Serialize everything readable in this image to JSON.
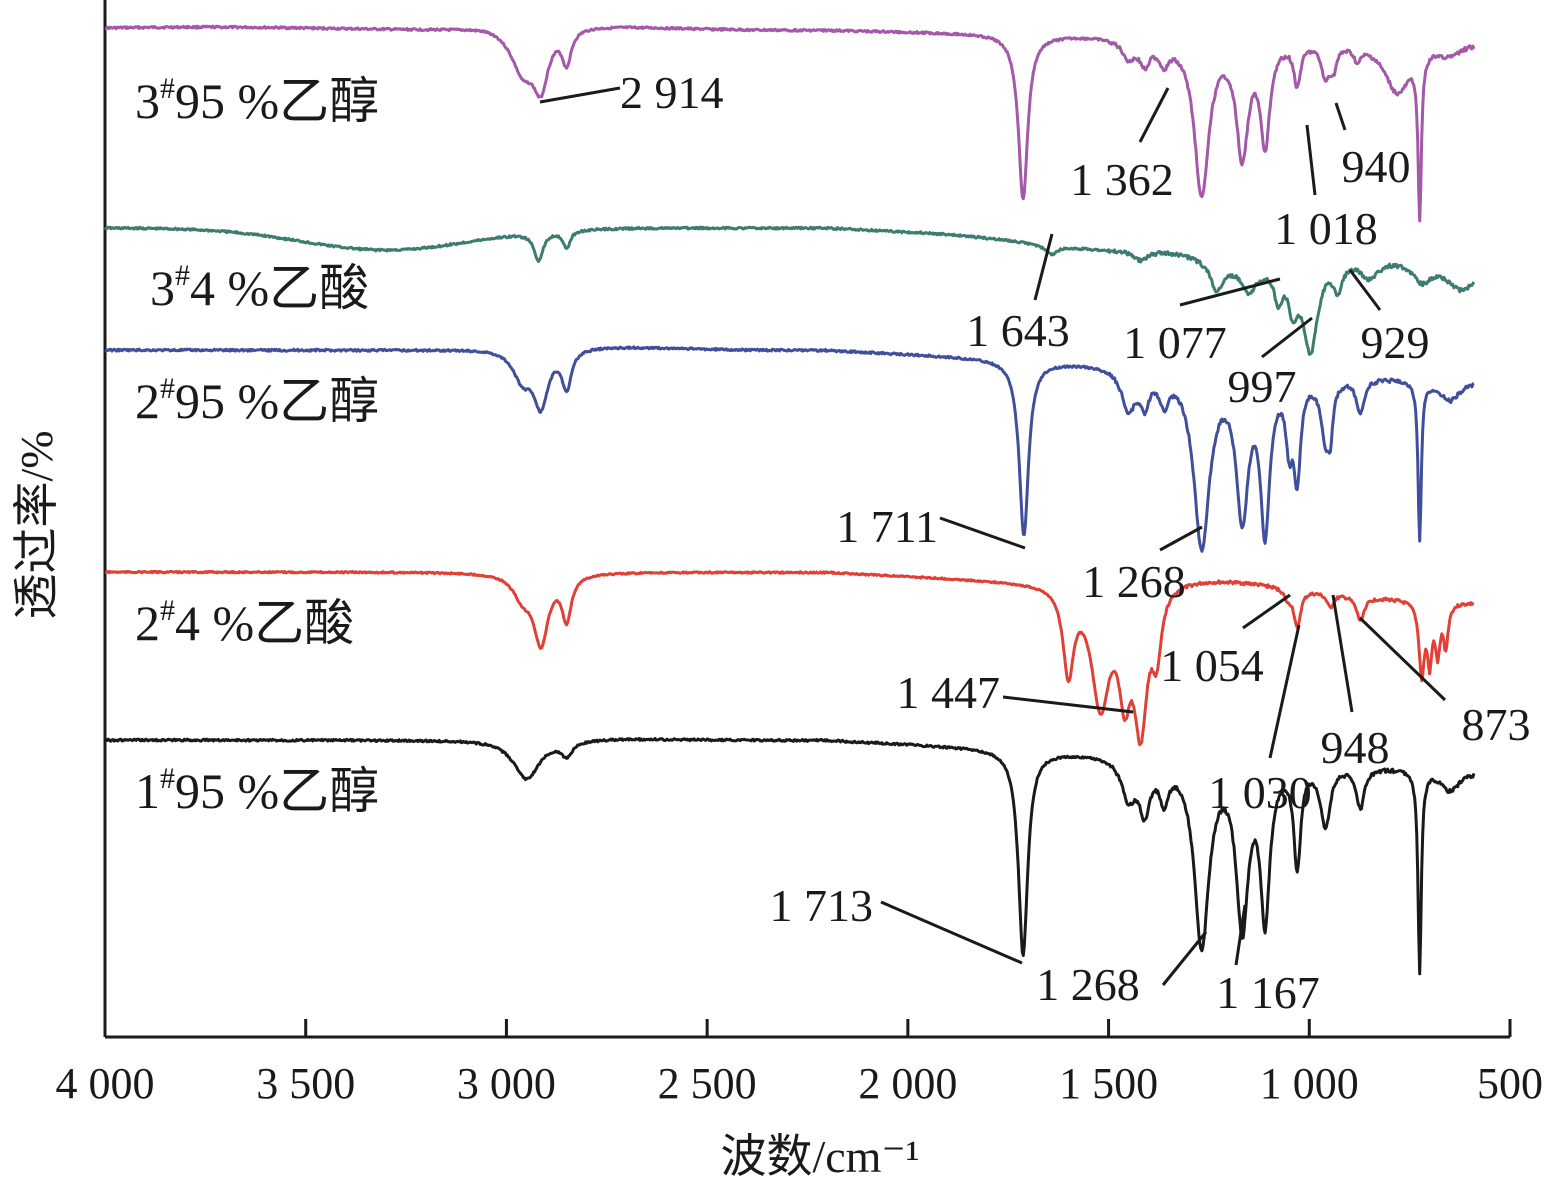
{
  "chart_data": {
    "type": "line",
    "xlabel": "波数/cm⁻¹",
    "ylabel": "透过率/%",
    "x_reversed": true,
    "xlim": [
      4000,
      500
    ],
    "xticks": [
      4000,
      3500,
      3000,
      2500,
      2000,
      1500,
      1000,
      500
    ],
    "xtick_labels": [
      "4 000",
      "3 500",
      "3 000",
      "2 500",
      "2 000",
      "1 500",
      "1 000",
      "500"
    ],
    "grid": false,
    "series": [
      {
        "name": "3#95 %乙醇",
        "label_main": "3",
        "label_sup": "#",
        "label_rest": "95 %乙醇",
        "color": "#a358a8",
        "peaks": [
          {
            "x": 2914,
            "label": "2 914"
          },
          {
            "x": 1362,
            "label": "1 362"
          },
          {
            "x": 1018,
            "label": "1 018"
          },
          {
            "x": 940,
            "label": "940"
          }
        ]
      },
      {
        "name": "3#4 %乙酸",
        "label_main": "3",
        "label_sup": "#",
        "label_rest": "4 %乙酸",
        "color": "#3d7c70",
        "peaks": [
          {
            "x": 1643,
            "label": "1 643"
          },
          {
            "x": 1077,
            "label": "1 077"
          },
          {
            "x": 997,
            "label": "997"
          },
          {
            "x": 929,
            "label": "929"
          }
        ]
      },
      {
        "name": "2#95 %乙醇",
        "label_main": "2",
        "label_sup": "#",
        "label_rest": "95 %乙醇",
        "color": "#3f4f9a",
        "peaks": [
          {
            "x": 1711,
            "label": "1 711"
          },
          {
            "x": 1268,
            "label": "1 268"
          }
        ]
      },
      {
        "name": "2#4 %乙酸",
        "label_main": "2",
        "label_sup": "#",
        "label_rest": "4 %乙酸",
        "color": "#e04036",
        "peaks": [
          {
            "x": 1447,
            "label": "1 447"
          },
          {
            "x": 1054,
            "label": "1 054"
          },
          {
            "x": 1030,
            "label": "1 030"
          },
          {
            "x": 948,
            "label": "948"
          },
          {
            "x": 873,
            "label": "873"
          }
        ]
      },
      {
        "name": "1#95 %乙醇",
        "label_main": "1",
        "label_sup": "#",
        "label_rest": "95 %乙醇",
        "color": "#1a1a1a",
        "peaks": [
          {
            "x": 1713,
            "label": "1 713"
          },
          {
            "x": 1268,
            "label": "1 268"
          },
          {
            "x": 1167,
            "label": "1 167"
          }
        ]
      }
    ]
  }
}
